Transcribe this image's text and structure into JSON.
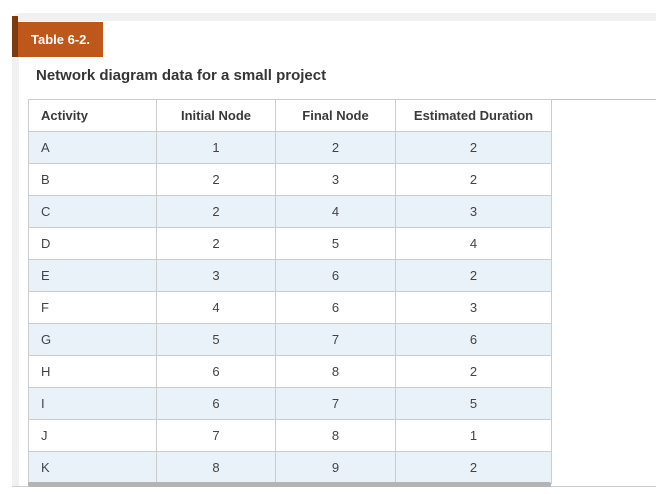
{
  "table_label": "Table 6-2.",
  "caption": "Network diagram data for a small project",
  "table": {
    "columns": [
      "Activity",
      "Initial Node",
      "Final Node",
      "Estimated Duration"
    ],
    "rows": [
      [
        "A",
        "1",
        "2",
        "2"
      ],
      [
        "B",
        "2",
        "3",
        "2"
      ],
      [
        "C",
        "2",
        "4",
        "3"
      ],
      [
        "D",
        "2",
        "5",
        "4"
      ],
      [
        "E",
        "3",
        "6",
        "2"
      ],
      [
        "F",
        "4",
        "6",
        "3"
      ],
      [
        "G",
        "5",
        "7",
        "6"
      ],
      [
        "H",
        "6",
        "8",
        "2"
      ],
      [
        "I",
        "6",
        "7",
        "5"
      ],
      [
        "J",
        "7",
        "8",
        "1"
      ],
      [
        "K",
        "8",
        "9",
        "2"
      ]
    ]
  },
  "colors": {
    "label_background": "#be581a",
    "label_fold": "#7d3a10",
    "row_stripe": "#e9f2f9",
    "card_background": "#f1f1f1",
    "table_border": "#cccccc",
    "scrollbar_thumb": "#b4b4b7"
  }
}
